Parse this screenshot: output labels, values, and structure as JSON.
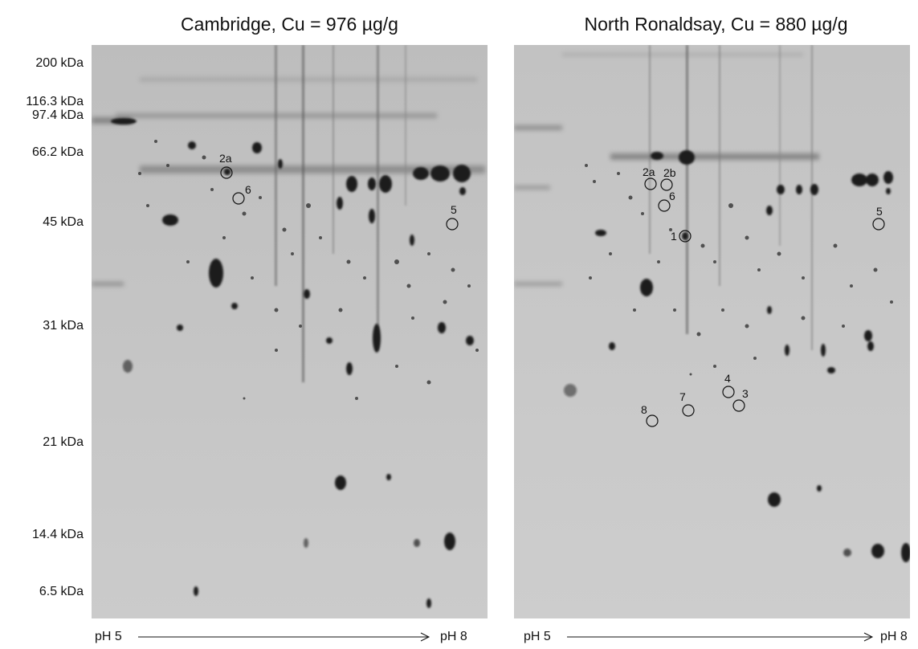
{
  "titles": {
    "left": "Cambridge, Cu = 976 µg/g",
    "right": "North Ronaldsay, Cu = 880 µg/g"
  },
  "mw_markers": [
    "200 kDa",
    "116.3 kDa",
    "97.4 kDa",
    "66.2 kDa",
    "45 kDa",
    "31 kDa",
    "21 kDa",
    "14.4 kDa",
    "6.5 kDa"
  ],
  "ph_axis": {
    "left": {
      "start": "pH 5",
      "end": "pH 8"
    },
    "right": {
      "start": "pH 5",
      "end": "pH 8"
    }
  },
  "spot_labels": {
    "left": [
      "2a",
      "6",
      "5"
    ],
    "right": [
      "2a",
      "2b",
      "6",
      "5",
      "1",
      "4",
      "3",
      "7",
      "8"
    ]
  },
  "colors": {
    "gel_background": "#c6c6c6",
    "spot": "#1a1a1a",
    "annotation": "#111111"
  }
}
